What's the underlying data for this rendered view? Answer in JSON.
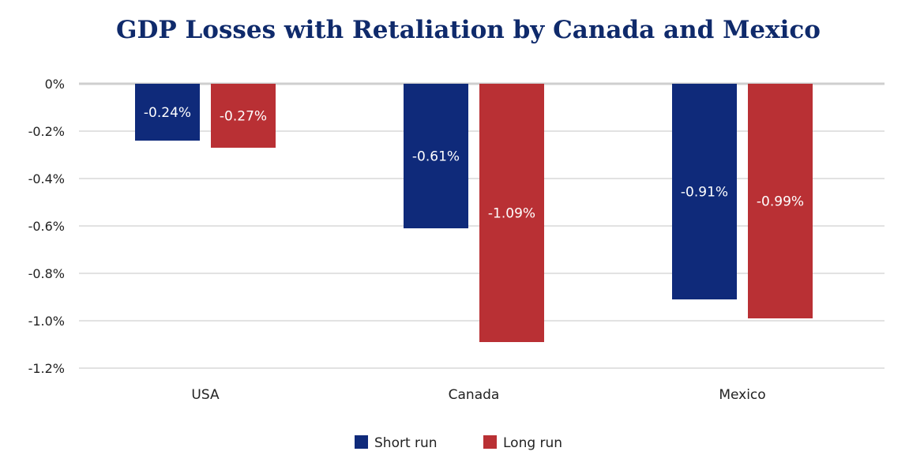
{
  "chart_data": {
    "type": "bar",
    "title": "GDP Losses with Retaliation by Canada and Mexico",
    "categories": [
      "USA",
      "Canada",
      "Mexico"
    ],
    "series": [
      {
        "name": "Short run",
        "values": [
          -0.24,
          -0.61,
          -0.91
        ],
        "labels": [
          "-0.24%",
          "-0.61%",
          "-0.91%"
        ],
        "color": "#0f2a7a"
      },
      {
        "name": "Long run",
        "values": [
          -0.27,
          -1.09,
          -0.99
        ],
        "labels": [
          "-0.27%",
          "-1.09%",
          "-0.99%"
        ],
        "color": "#b93034"
      }
    ],
    "ylim": [
      -1.2,
      0
    ],
    "yticks": [
      0,
      -0.2,
      -0.4,
      -0.6,
      -0.8,
      -1.0,
      -1.2
    ],
    "ytick_labels": [
      "0%",
      "-0.2%",
      "-0.4%",
      "-0.6%",
      "-0.8%",
      "-1.0%",
      "-1.2%"
    ],
    "grid": true,
    "legend_position": "bottom",
    "xlabel": "",
    "ylabel": ""
  }
}
